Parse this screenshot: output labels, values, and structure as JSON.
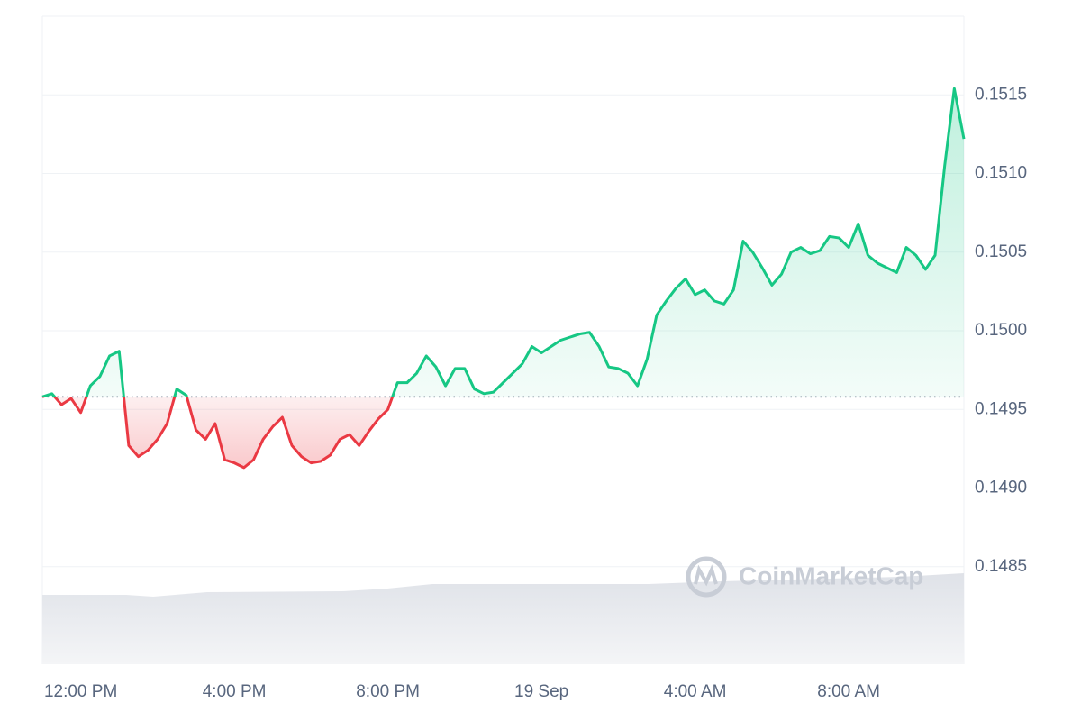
{
  "chart_data": {
    "type": "line",
    "categories": [
      null,
      null,
      null,
      null,
      "12:00 PM",
      null,
      null,
      null,
      null,
      null,
      null,
      null,
      null,
      null,
      null,
      null,
      null,
      null,
      null,
      null,
      "4:00 PM",
      null,
      null,
      null,
      null,
      null,
      null,
      null,
      null,
      null,
      null,
      null,
      null,
      null,
      null,
      null,
      "8:00 PM",
      null,
      null,
      null,
      null,
      null,
      null,
      null,
      null,
      null,
      null,
      null,
      null,
      null,
      null,
      null,
      "19 Sep",
      null,
      null,
      null,
      null,
      null,
      null,
      null,
      null,
      null,
      null,
      null,
      null,
      null,
      null,
      null,
      "4:00 AM",
      null,
      null,
      null,
      null,
      null,
      null,
      null,
      null,
      null,
      null,
      null,
      null,
      null,
      null,
      null,
      "8:00 AM",
      null,
      null,
      null,
      null,
      null,
      null,
      null,
      null,
      null,
      null,
      null,
      null
    ],
    "values": [
      0.14958,
      0.1496,
      0.14953,
      0.14957,
      0.14948,
      0.14965,
      0.14971,
      0.14984,
      0.14987,
      0.14927,
      0.1492,
      0.14924,
      0.14931,
      0.14941,
      0.14963,
      0.14959,
      0.14937,
      0.14931,
      0.14941,
      0.14918,
      0.14916,
      0.14913,
      0.14918,
      0.14931,
      0.14939,
      0.14945,
      0.14927,
      0.1492,
      0.14916,
      0.14917,
      0.14921,
      0.14931,
      0.14934,
      0.14927,
      0.14936,
      0.14944,
      0.1495,
      0.14967,
      0.14967,
      0.14973,
      0.14984,
      0.14977,
      0.14965,
      0.14976,
      0.14976,
      0.14963,
      0.1496,
      0.14961,
      0.14967,
      0.14973,
      0.14979,
      0.1499,
      0.14986,
      0.1499,
      0.14994,
      0.14996,
      0.14998,
      0.14999,
      0.1499,
      0.14977,
      0.14976,
      0.14973,
      0.14965,
      0.14982,
      0.1501,
      0.15019,
      0.15027,
      0.15033,
      0.15023,
      0.15026,
      0.15019,
      0.15017,
      0.15026,
      0.15057,
      0.1505,
      0.1504,
      0.15029,
      0.15036,
      0.1505,
      0.15053,
      0.15049,
      0.15051,
      0.1506,
      0.15059,
      0.15053,
      0.15068,
      0.15048,
      0.15043,
      0.1504,
      0.15037,
      0.15053,
      0.15048,
      0.15039,
      0.15048,
      0.15105,
      0.15154,
      0.15122
    ],
    "baseline": 0.14958,
    "up_color": "#16c784",
    "down_color": "#ea3943",
    "ylim": [
      0.14788,
      0.152
    ],
    "yticks": [
      0.1485,
      {
        "value": 0.149,
        "label": "0.1490"
      },
      0.1495,
      {
        "value": 0.15,
        "label": "0.1500"
      },
      0.1505,
      {
        "value": 0.151,
        "label": "0.1510"
      },
      0.1515
    ],
    "grid": true,
    "watermark": "CoinMarketCap"
  }
}
